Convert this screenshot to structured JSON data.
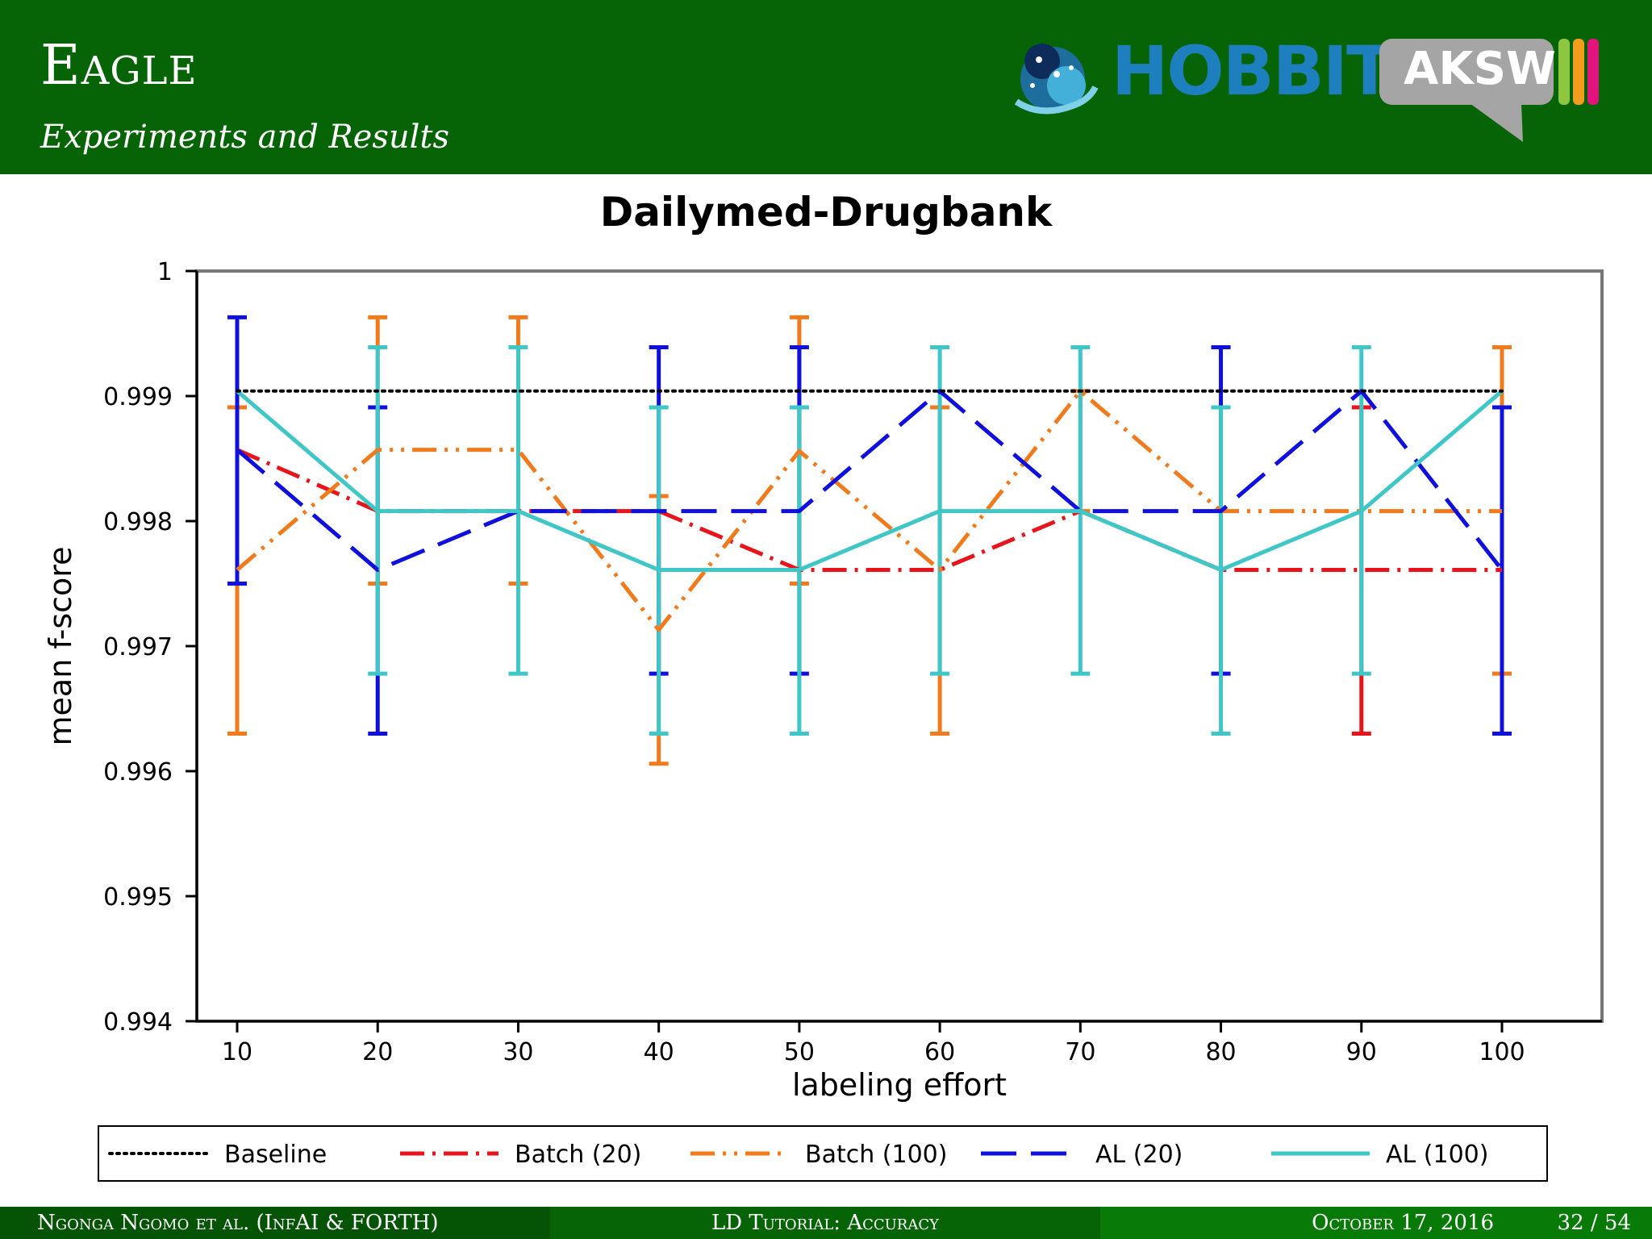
{
  "header": {
    "title": "Eagle",
    "subtitle": "Experiments and Results",
    "logos": {
      "hobbit": "HOBBIT",
      "aksw": "AKSW"
    }
  },
  "footer": {
    "authors": "Ngonga Ngomo et al. (InfAI & FORTH)",
    "talk": "LD Tutorial: Accuracy",
    "date": "October 17, 2016",
    "page": "32 / 54"
  },
  "colors": {
    "header_bg": "#066406",
    "baseline": "#000000",
    "batch20": "#e8141b",
    "batch100": "#f07a1c",
    "al20": "#1010dd",
    "al100": "#3fc6c6"
  },
  "chart_data": {
    "type": "line",
    "title": "Dailymed-Drugbank",
    "xlabel": "labeling effort",
    "ylabel": "mean f-score",
    "x": [
      10,
      20,
      30,
      40,
      50,
      60,
      70,
      80,
      90,
      100
    ],
    "xlim": [
      7,
      107
    ],
    "ylim": [
      0.994,
      1.0
    ],
    "yticks": [
      0.994,
      0.995,
      0.996,
      0.997,
      0.998,
      0.999,
      1
    ],
    "ytick_labels": [
      "0.994",
      "0.995",
      "0.996",
      "0.997",
      "0.998",
      "0.999",
      "1"
    ],
    "grid": false,
    "legend_position": "bottom",
    "series": [
      {
        "name": "Baseline",
        "color": "#000000",
        "dash": "dotted",
        "values": [
          0.99904,
          0.99904,
          0.99904,
          0.99904,
          0.99904,
          0.99904,
          0.99904,
          0.99904,
          0.99904,
          0.99904
        ]
      },
      {
        "name": "Batch (20)",
        "color": "#e8141b",
        "dash": "dashdot",
        "values": [
          0.99857,
          0.99808,
          0.99808,
          0.99808,
          0.99761,
          0.99761,
          0.99808,
          0.99761,
          0.99761,
          0.99761
        ],
        "err_low": [
          0.99857,
          0.99808,
          0.99808,
          0.99808,
          0.99761,
          0.99761,
          0.99808,
          0.99761,
          0.9963,
          0.99761
        ],
        "err_high": [
          0.99857,
          0.99808,
          0.99808,
          0.99808,
          0.99761,
          0.99761,
          0.99808,
          0.99761,
          0.99891,
          0.99761
        ]
      },
      {
        "name": "Batch (100)",
        "color": "#f07a1c",
        "dash": "dashdotdot",
        "values": [
          0.99761,
          0.99857,
          0.99857,
          0.99713,
          0.99856,
          0.99761,
          0.99904,
          0.99808,
          0.99808,
          0.99808
        ],
        "err_low": [
          0.9963,
          0.9975,
          0.9975,
          0.99606,
          0.9975,
          0.9963,
          0.99808,
          0.99808,
          0.99808,
          0.99678
        ],
        "err_high": [
          0.99891,
          0.99963,
          0.99963,
          0.9982,
          0.99963,
          0.99891,
          0.99904,
          0.99808,
          0.99808,
          0.99939
        ]
      },
      {
        "name": "AL (20)",
        "color": "#1010dd",
        "dash": "dashed",
        "values": [
          0.99857,
          0.99761,
          0.99808,
          0.99808,
          0.99808,
          0.99904,
          0.99808,
          0.99808,
          0.99904,
          0.99761
        ],
        "err_low": [
          0.9975,
          0.9963,
          0.99808,
          0.99678,
          0.99678,
          0.99904,
          0.99808,
          0.99678,
          0.99904,
          0.9963
        ],
        "err_high": [
          0.99963,
          0.99891,
          0.99808,
          0.99939,
          0.99939,
          0.99904,
          0.99808,
          0.99939,
          0.99904,
          0.99891
        ]
      },
      {
        "name": "AL (100)",
        "color": "#3fc6c6",
        "dash": "solid",
        "values": [
          0.99904,
          0.99808,
          0.99808,
          0.99761,
          0.99761,
          0.99808,
          0.99808,
          0.99761,
          0.99808,
          0.99904
        ],
        "err_low": [
          0.99904,
          0.99678,
          0.99678,
          0.9963,
          0.9963,
          0.99678,
          0.99678,
          0.9963,
          0.99678,
          0.99904
        ],
        "err_high": [
          0.99904,
          0.99939,
          0.99939,
          0.99891,
          0.99891,
          0.99939,
          0.99939,
          0.99891,
          0.99939,
          0.99904
        ]
      }
    ]
  }
}
